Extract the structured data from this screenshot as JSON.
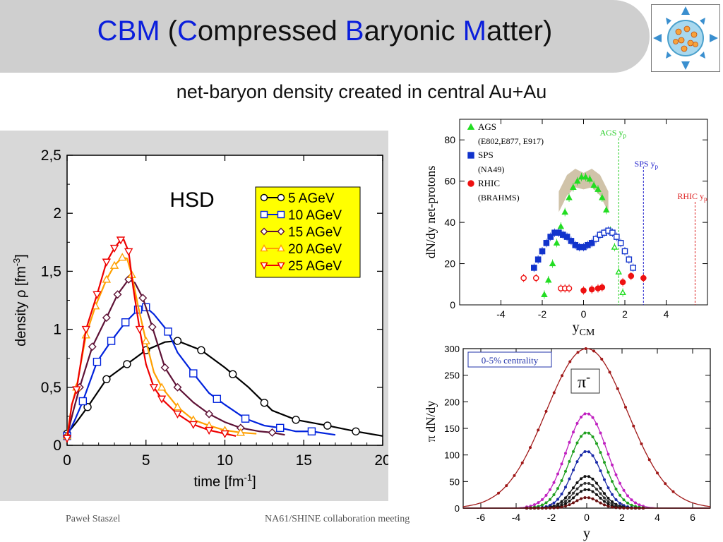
{
  "header": {
    "title_parts": [
      {
        "text": "CBM",
        "hl": true
      },
      {
        "text": " (",
        "hl": false
      },
      {
        "text": "C",
        "hl": true
      },
      {
        "text": "ompressed ",
        "hl": false
      },
      {
        "text": "B",
        "hl": true
      },
      {
        "text": "aryonic ",
        "hl": false
      },
      {
        "text": "M",
        "hl": true
      },
      {
        "text": "atter)",
        "hl": false
      }
    ],
    "subtitle": "net-baryon density created in central Au+Au",
    "highlight_color": "#0a1edc",
    "band_color": "#cfcfcf"
  },
  "footer": {
    "author": "Paweł Staszel",
    "event": "NA61/SHINE collaboration meeting"
  },
  "chart_data": [
    {
      "type": "line",
      "label": "HSD",
      "xlabel": "time [fm",
      "xlabel_sup": "-1",
      "xlabel_end": "]",
      "ylabel": "density ρ [fm",
      "ylabel_sup": "-3",
      "ylabel_end": "]",
      "xlim": [
        0,
        20
      ],
      "ylim": [
        0,
        2.5
      ],
      "xticks": [
        "0",
        "5",
        "10",
        "15",
        "20"
      ],
      "yticks": [
        "0",
        "0,5",
        "1",
        "1,5",
        "2",
        "2,5"
      ],
      "legend_position": "top-right",
      "series": [
        {
          "name": "5 AGeV",
          "color": "#000000",
          "marker": "circle",
          "x": [
            0,
            0.6,
            1.3,
            2.5,
            3.8,
            5.0,
            6.2,
            7.0,
            8.5,
            10.0,
            11.5,
            13.0,
            14.5,
            16.5,
            18.3,
            20.0
          ],
          "y": [
            0.1,
            0.2,
            0.33,
            0.57,
            0.7,
            0.82,
            0.89,
            0.9,
            0.82,
            0.67,
            0.5,
            0.3,
            0.22,
            0.17,
            0.12,
            0.08
          ],
          "markers_x": [
            0,
            1.3,
            2.5,
            3.8,
            5.0,
            7.0,
            8.5,
            10.5,
            12.5,
            14.5,
            16.5,
            18.3
          ]
        },
        {
          "name": "10 AGeV",
          "color": "#0022dd",
          "marker": "square",
          "x": [
            0,
            0.5,
            1.0,
            1.9,
            2.8,
            3.7,
            4.5,
            5.0,
            5.5,
            6.4,
            7.0,
            8.0,
            9.0,
            10.0,
            11.3,
            12.5,
            13.5,
            14.5,
            15.5,
            17.0
          ],
          "y": [
            0.08,
            0.22,
            0.38,
            0.72,
            0.9,
            1.06,
            1.17,
            1.19,
            1.13,
            0.98,
            0.8,
            0.62,
            0.45,
            0.35,
            0.23,
            0.17,
            0.15,
            0.12,
            0.12,
            0.09
          ],
          "markers_x": [
            0,
            1.0,
            1.9,
            2.8,
            3.7,
            4.5,
            5.0,
            6.4,
            8.0,
            9.5,
            11.3,
            13.5,
            15.5
          ]
        },
        {
          "name": "15 AGeV",
          "color": "#5e1236",
          "marker": "diamond",
          "x": [
            0,
            0.4,
            0.8,
            1.6,
            2.5,
            3.2,
            3.9,
            4.3,
            4.8,
            5.4,
            6.2,
            7.0,
            8.0,
            9.0,
            10.0,
            11.0,
            12.2,
            13.0,
            13.8
          ],
          "y": [
            0.08,
            0.3,
            0.5,
            0.85,
            1.1,
            1.3,
            1.43,
            1.4,
            1.27,
            1.02,
            0.67,
            0.5,
            0.37,
            0.27,
            0.2,
            0.15,
            0.12,
            0.11,
            0.09
          ],
          "markers_x": [
            0,
            0.8,
            1.6,
            2.5,
            3.2,
            3.9,
            4.8,
            5.4,
            6.2,
            7.0,
            9.0,
            11.0,
            13.0
          ]
        },
        {
          "name": "20 AGeV",
          "color": "#ffa000",
          "marker": "triangle-up",
          "x": [
            0,
            0.3,
            0.6,
            1.2,
            1.8,
            2.5,
            3.0,
            3.5,
            3.8,
            4.1,
            4.5,
            5.0,
            5.5,
            6.0,
            7.0,
            8.0,
            9.0,
            10.0,
            11.0,
            12.0
          ],
          "y": [
            0.08,
            0.35,
            0.5,
            0.95,
            1.2,
            1.43,
            1.55,
            1.62,
            1.61,
            1.47,
            1.2,
            0.9,
            0.63,
            0.5,
            0.33,
            0.22,
            0.17,
            0.13,
            0.11,
            0.1
          ],
          "markers_x": [
            0,
            0.6,
            1.2,
            1.8,
            2.5,
            3.0,
            3.5,
            4.1,
            5.0,
            6.0,
            7.0,
            8.0,
            9.0,
            10.0,
            11.0
          ]
        },
        {
          "name": "25 AGeV",
          "color": "#ee0000",
          "marker": "triangle-down",
          "x": [
            0,
            0.3,
            0.6,
            1.2,
            1.9,
            2.5,
            3.0,
            3.4,
            3.6,
            3.9,
            4.2,
            4.6,
            5.0,
            5.5,
            6.0,
            7.0,
            8.0,
            9.0,
            10.0,
            10.7
          ],
          "y": [
            0.06,
            0.35,
            0.48,
            1.0,
            1.3,
            1.58,
            1.7,
            1.77,
            1.77,
            1.67,
            1.35,
            1.0,
            0.7,
            0.5,
            0.4,
            0.27,
            0.18,
            0.13,
            0.1,
            0.08
          ],
          "markers_x": [
            0,
            0.6,
            1.2,
            1.9,
            2.5,
            3.0,
            3.4,
            3.9,
            4.6,
            5.5,
            6.0,
            7.0,
            8.0,
            9.0,
            10.0
          ]
        }
      ]
    },
    {
      "type": "scatter",
      "xlabel": "y",
      "xlabel_sub": "CM",
      "ylabel": "dN/dy net-protons",
      "xlim": [
        -6,
        6
      ],
      "ylim": [
        0,
        90
      ],
      "xticks": [
        "-4",
        "-2",
        "0",
        "2",
        "4"
      ],
      "yticks": [
        "0",
        "20",
        "40",
        "60",
        "80"
      ],
      "annotations": [
        {
          "text": "AGS y",
          "sub": "p",
          "x": 1.7,
          "color": "#22cc22"
        },
        {
          "text": "SPS y",
          "sub": "p",
          "x": 2.9,
          "color": "#2222cc"
        },
        {
          "text": "RHIC y",
          "sub": "p",
          "x": 5.4,
          "color": "#dd2222"
        }
      ],
      "legend": [
        {
          "name": "AGS",
          "sub": "(E802,E877, E917)",
          "color": "#22dd22",
          "marker": "triangle-up"
        },
        {
          "name": "SPS",
          "sub": "(NA49)",
          "color": "#1133cc",
          "marker": "square"
        },
        {
          "name": "RHIC",
          "sub": "(BRAHMS)",
          "color": "#ee1111",
          "marker": "circle"
        }
      ],
      "band": {
        "color": "#c8b89a",
        "x": [
          -1.2,
          -0.8,
          -0.4,
          0,
          0.4,
          0.8,
          1.2
        ],
        "upper": [
          55,
          63,
          66,
          64,
          66,
          63,
          55
        ],
        "lower": [
          45,
          53,
          57,
          56,
          57,
          53,
          45
        ]
      },
      "series": [
        {
          "name": "AGS",
          "color": "#22dd22",
          "x_filled": [
            -1.9,
            -1.7,
            -1.5,
            -1.3,
            -1.1,
            -0.9,
            -0.7,
            -0.5,
            -0.3,
            -0.1,
            0.1,
            0.3,
            0.5,
            0.7,
            0.9,
            1.1
          ],
          "y_filled": [
            5,
            12,
            20,
            30,
            38,
            45,
            52,
            57,
            60,
            62,
            62,
            61,
            58,
            56,
            52,
            46
          ],
          "x_open": [
            1.3,
            1.5,
            1.7,
            1.9
          ],
          "y_open": [
            36,
            28,
            16,
            6
          ]
        },
        {
          "name": "SPS",
          "color": "#1133cc",
          "x_filled": [
            -2.4,
            -2.2,
            -2.0,
            -1.8,
            -1.6,
            -1.4,
            -1.2,
            -1.0,
            -0.8,
            -0.6,
            -0.4,
            -0.2,
            0.0,
            0.2,
            0.4
          ],
          "y_filled": [
            18,
            22,
            26,
            30,
            33,
            35,
            35,
            34,
            33,
            31,
            29,
            28,
            28,
            29,
            30
          ],
          "x_open": [
            0.6,
            0.8,
            1.0,
            1.2,
            1.4,
            1.6,
            1.8,
            2.0,
            2.2,
            2.4
          ],
          "y_open": [
            32,
            34,
            35,
            36,
            35,
            33,
            30,
            26,
            22,
            18
          ]
        },
        {
          "name": "RHIC",
          "color": "#ee1111",
          "x_filled": [
            0,
            0.4,
            0.7,
            0.9,
            1.9,
            2.3,
            2.9
          ],
          "y_filled": [
            7,
            7.5,
            8,
            8.5,
            11,
            14,
            13
          ],
          "x_open": [
            -2.9,
            -2.3,
            -1.1,
            -0.9,
            -0.7
          ],
          "y_open": [
            13,
            13,
            8,
            8,
            8
          ]
        }
      ]
    },
    {
      "type": "line",
      "xlabel": "y",
      "ylabel": "π dN/dy",
      "xlim": [
        -7,
        7
      ],
      "ylim": [
        0,
        300
      ],
      "xticks": [
        "-6",
        "-4",
        "-2",
        "0",
        "2",
        "4",
        "6"
      ],
      "yticks": [
        "0",
        "50",
        "100",
        "150",
        "200",
        "250",
        "300"
      ],
      "centrality_label": "0-5% centrality",
      "particle_label": "π",
      "particle_sup": "-",
      "series": [
        {
          "name": "",
          "color": "#a01818",
          "amp": 300,
          "sigma": 2.3
        },
        {
          "name": "",
          "color": "#c020c0",
          "amp": 178,
          "sigma": 1.15
        },
        {
          "name": "",
          "color": "#20a020",
          "amp": 142,
          "sigma": 1.0
        },
        {
          "name": "",
          "color": "#1a2aa8",
          "amp": 107,
          "sigma": 0.85
        },
        {
          "name": "",
          "color": "#111111",
          "amp": 60,
          "sigma": 0.8
        },
        {
          "name": "",
          "color": "#333333",
          "amp": 47,
          "sigma": 0.75
        },
        {
          "name": "",
          "color": "#111111",
          "amp": 35,
          "sigma": 0.7
        },
        {
          "name": "",
          "color": "#6a1010",
          "amp": 20,
          "sigma": 0.65
        }
      ]
    }
  ]
}
